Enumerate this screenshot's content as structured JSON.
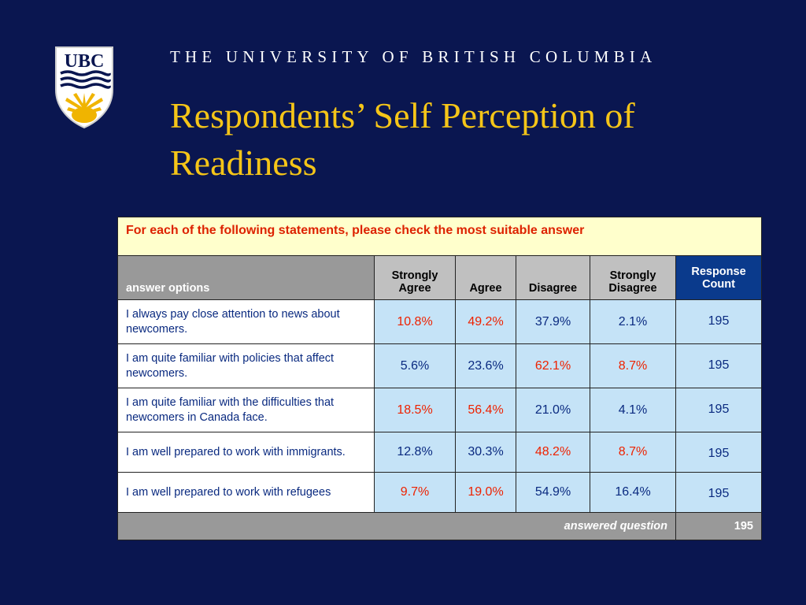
{
  "header": {
    "university": "THE UNIVERSITY OF BRITISH COLUMBIA",
    "title": "Respondents’ Self Perception of Readiness",
    "logo_text": "UBC"
  },
  "colors": {
    "background": "#0a1650",
    "title": "#f5c518",
    "highlight_red": "#ee2200",
    "value_blue": "#0a2a80",
    "instruction_bg": "#ffffcc",
    "cell_bg": "#c5e3f7",
    "count_header_bg": "#0a3a8c"
  },
  "table": {
    "instruction": "For each of the following statements, please check the most suitable answer",
    "columns": {
      "options": "answer options",
      "strongly_agree": "Strongly Agree",
      "agree": "Agree",
      "disagree": "Disagree",
      "strongly_disagree": "Strongly Disagree",
      "response_count": "Response Count"
    },
    "rows": [
      {
        "statement": "I always pay close attention to news about newcomers.",
        "strongly_agree": "10.8%",
        "agree": "49.2%",
        "disagree": "37.9%",
        "strongly_disagree": "2.1%",
        "count": "195",
        "highlighted": [
          "strongly_agree",
          "agree"
        ]
      },
      {
        "statement": "I am quite familiar with policies that affect newcomers.",
        "strongly_agree": "5.6%",
        "agree": "23.6%",
        "disagree": "62.1%",
        "strongly_disagree": "8.7%",
        "count": "195",
        "highlighted": [
          "disagree",
          "strongly_disagree"
        ]
      },
      {
        "statement": "I am quite familiar with the difficulties that newcomers in Canada face.",
        "strongly_agree": "18.5%",
        "agree": "56.4%",
        "disagree": "21.0%",
        "strongly_disagree": "4.1%",
        "count": "195",
        "highlighted": [
          "strongly_agree",
          "agree"
        ]
      },
      {
        "statement": "I am well prepared to work with immigrants.",
        "strongly_agree": "12.8%",
        "agree": "30.3%",
        "disagree": "48.2%",
        "strongly_disagree": "8.7%",
        "count": "195",
        "highlighted": [
          "disagree",
          "strongly_disagree"
        ]
      },
      {
        "statement": "I am well prepared to work with refugees",
        "strongly_agree": "9.7%",
        "agree": "19.0%",
        "disagree": "54.9%",
        "strongly_disagree": "16.4%",
        "count": "195",
        "highlighted": [
          "strongly_agree",
          "agree"
        ]
      }
    ],
    "footer": {
      "label": "answered question",
      "total": "195"
    }
  }
}
